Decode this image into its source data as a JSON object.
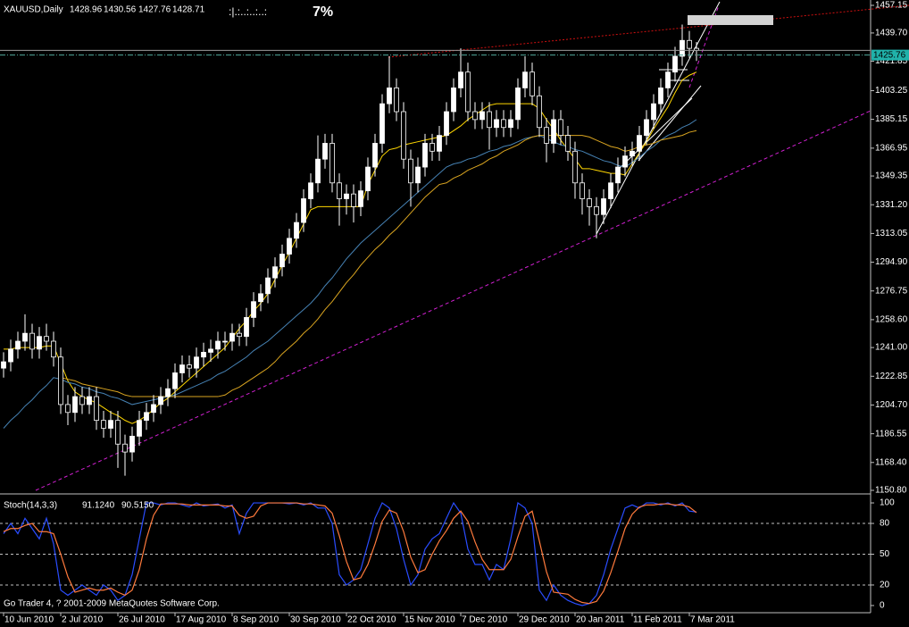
{
  "chart_data": [
    {
      "type": "candlestick",
      "title": "XAUUSD,Daily",
      "readout": [
        1428.96,
        1430.56,
        1427.76,
        1428.71
      ],
      "annotations": [
        ":|.:..:..:..:",
        "7%"
      ],
      "bid": 1425.76,
      "categories": [
        "10 Jun 2010",
        null,
        null,
        null,
        null,
        null,
        null,
        null,
        "2 Jul 2010",
        null,
        null,
        null,
        null,
        null,
        null,
        null,
        "26 Jul 2010",
        null,
        null,
        null,
        null,
        null,
        null,
        null,
        "17 Aug 2010",
        null,
        null,
        null,
        null,
        null,
        null,
        null,
        "8 Sep 2010",
        null,
        null,
        null,
        null,
        null,
        null,
        null,
        "30 Sep 2010",
        null,
        null,
        null,
        null,
        null,
        null,
        null,
        "22 Oct 2010",
        null,
        null,
        null,
        null,
        null,
        null,
        null,
        "15 Nov 2010",
        null,
        null,
        null,
        null,
        null,
        null,
        null,
        "7 Dec 2010",
        null,
        null,
        null,
        null,
        null,
        null,
        null,
        "29 Dec 2010",
        null,
        null,
        null,
        null,
        null,
        null,
        null,
        "20 Jan 2011",
        null,
        null,
        null,
        null,
        null,
        null,
        null,
        "11 Feb 2011",
        null,
        null,
        null,
        null,
        null,
        null,
        null,
        "7 Mar 2011",
        null
      ],
      "open": [
        1228,
        1232,
        1240,
        1245,
        1250,
        1240,
        1248,
        1245,
        1235,
        1205,
        1200,
        1210,
        1205,
        1210,
        1195,
        1190,
        1195,
        1180,
        1175,
        1185,
        1195,
        1200,
        1205,
        1210,
        1215,
        1225,
        1230,
        1228,
        1235,
        1238,
        1240,
        1245,
        1245,
        1250,
        1248,
        1260,
        1270,
        1275,
        1285,
        1292,
        1300,
        1310,
        1320,
        1335,
        1345,
        1360,
        1370,
        1345,
        1335,
        1338,
        1330,
        1340,
        1355,
        1370,
        1395,
        1405,
        1390,
        1360,
        1345,
        1355,
        1370,
        1365,
        1375,
        1390,
        1405,
        1415,
        1390,
        1385,
        1390,
        1380,
        1385,
        1380,
        1385,
        1405,
        1415,
        1400,
        1380,
        1370,
        1385,
        1375,
        1365,
        1345,
        1335,
        1330,
        1325,
        1335,
        1345,
        1355,
        1362,
        1365,
        1375,
        1385,
        1395,
        1405,
        1415,
        1425,
        1435,
        1430
      ],
      "high": [
        1238,
        1246,
        1251,
        1262,
        1256,
        1254,
        1256,
        1251,
        1241,
        1211,
        1216,
        1216,
        1216,
        1216,
        1201,
        1201,
        1201,
        1186,
        1191,
        1201,
        1206,
        1211,
        1216,
        1221,
        1231,
        1236,
        1236,
        1241,
        1244,
        1246,
        1251,
        1251,
        1256,
        1256,
        1266,
        1276,
        1281,
        1291,
        1298,
        1306,
        1316,
        1326,
        1341,
        1351,
        1375,
        1376,
        1376,
        1351,
        1344,
        1344,
        1346,
        1361,
        1376,
        1401,
        1425,
        1411,
        1396,
        1366,
        1361,
        1376,
        1376,
        1381,
        1396,
        1411,
        1430,
        1421,
        1396,
        1396,
        1396,
        1391,
        1391,
        1391,
        1411,
        1425,
        1421,
        1406,
        1386,
        1391,
        1391,
        1381,
        1371,
        1351,
        1341,
        1336,
        1341,
        1351,
        1361,
        1368,
        1371,
        1381,
        1391,
        1401,
        1411,
        1421,
        1431,
        1445,
        1441,
        1434
      ],
      "low": [
        1222,
        1226,
        1234,
        1239,
        1234,
        1234,
        1239,
        1229,
        1199,
        1192,
        1194,
        1199,
        1199,
        1189,
        1184,
        1184,
        1165,
        1160,
        1169,
        1179,
        1189,
        1194,
        1199,
        1204,
        1209,
        1219,
        1222,
        1222,
        1229,
        1232,
        1234,
        1239,
        1239,
        1242,
        1242,
        1254,
        1264,
        1269,
        1279,
        1286,
        1294,
        1304,
        1314,
        1329,
        1339,
        1354,
        1339,
        1318,
        1325,
        1320,
        1324,
        1334,
        1349,
        1364,
        1389,
        1384,
        1354,
        1330,
        1339,
        1349,
        1359,
        1359,
        1369,
        1384,
        1399,
        1384,
        1379,
        1379,
        1366,
        1374,
        1374,
        1374,
        1379,
        1399,
        1394,
        1374,
        1358,
        1364,
        1369,
        1359,
        1335,
        1325,
        1318,
        1310,
        1319,
        1329,
        1339,
        1349,
        1356,
        1359,
        1369,
        1379,
        1389,
        1399,
        1409,
        1419,
        1424,
        1422
      ],
      "close": [
        1232,
        1240,
        1245,
        1250,
        1240,
        1248,
        1245,
        1235,
        1205,
        1200,
        1210,
        1205,
        1210,
        1195,
        1190,
        1195,
        1180,
        1175,
        1185,
        1195,
        1200,
        1205,
        1210,
        1215,
        1225,
        1230,
        1228,
        1235,
        1238,
        1240,
        1245,
        1245,
        1250,
        1248,
        1260,
        1270,
        1275,
        1285,
        1292,
        1300,
        1310,
        1320,
        1335,
        1345,
        1360,
        1370,
        1345,
        1335,
        1338,
        1330,
        1340,
        1355,
        1370,
        1395,
        1405,
        1390,
        1360,
        1345,
        1355,
        1370,
        1365,
        1375,
        1390,
        1405,
        1415,
        1390,
        1385,
        1390,
        1380,
        1385,
        1380,
        1385,
        1405,
        1415,
        1400,
        1380,
        1370,
        1385,
        1375,
        1365,
        1345,
        1335,
        1330,
        1325,
        1335,
        1345,
        1355,
        1362,
        1365,
        1375,
        1385,
        1395,
        1405,
        1415,
        1425,
        1435,
        1430,
        1428.71
      ],
      "overlays": [
        {
          "color": "#ffd700",
          "values": [
            1240,
            1240,
            1241,
            1241,
            1241,
            1241,
            1242,
            1242,
            1231,
            1220,
            1213,
            1210,
            1208,
            1206,
            1203,
            1200,
            1198,
            1195,
            1193,
            1195,
            1198,
            1202,
            1206,
            1209,
            1213,
            1217,
            1221,
            1225,
            1229,
            1233,
            1237,
            1241,
            1247,
            1253,
            1258,
            1264,
            1269,
            1275,
            1284,
            1293,
            1301,
            1310,
            1319,
            1328,
            1330,
            1330,
            1330,
            1330,
            1330,
            1330,
            1330,
            1344,
            1353,
            1362,
            1366,
            1367,
            1369,
            1370,
            1371,
            1372,
            1373,
            1374,
            1375,
            1378,
            1381,
            1385,
            1388,
            1391,
            1394,
            1395,
            1395,
            1395,
            1395,
            1395,
            1395,
            1392,
            1385,
            1379,
            1372,
            1366,
            1360,
            1354,
            1354,
            1353,
            1352,
            1351,
            1351,
            1350,
            1357,
            1364,
            1371,
            1379,
            1386,
            1393,
            1402,
            1410,
            1413,
            1415
          ]
        },
        {
          "color": "#4682b4",
          "values": [
            1190,
            1195,
            1199,
            1204,
            1208,
            1213,
            1217,
            1222,
            1221,
            1219,
            1218,
            1216,
            1215,
            1213,
            1212,
            1210,
            1209,
            1207,
            1205,
            1206,
            1207,
            1208,
            1209,
            1210,
            1211,
            1213,
            1215,
            1217,
            1219,
            1221,
            1224,
            1226,
            1229,
            1232,
            1235,
            1239,
            1242,
            1245,
            1249,
            1253,
            1257,
            1261,
            1265,
            1269,
            1274,
            1280,
            1285,
            1291,
            1297,
            1302,
            1307,
            1311,
            1315,
            1319,
            1323,
            1327,
            1331,
            1335,
            1339,
            1343,
            1347,
            1351,
            1355,
            1357,
            1358,
            1360,
            1361,
            1363,
            1365,
            1366,
            1368,
            1369,
            1371,
            1373,
            1374,
            1375,
            1373,
            1371,
            1369,
            1368,
            1366,
            1365,
            1363,
            1361,
            1359,
            1358,
            1356,
            1355,
            1358,
            1361,
            1365,
            1368,
            1372,
            1375,
            1377,
            1380,
            1382,
            1385
          ]
        },
        {
          "color": "#daa520",
          "values": [
            null,
            null,
            null,
            null,
            null,
            null,
            null,
            null,
            1222,
            1221,
            1220,
            1218,
            1217,
            1216,
            1215,
            1214,
            1213,
            1211,
            1210,
            1210,
            1210,
            1210,
            1210,
            1210,
            1210,
            1210,
            1210,
            1210,
            1210,
            1210,
            1210,
            1211,
            1214,
            1216,
            1219,
            1222,
            1225,
            1228,
            1232,
            1237,
            1241,
            1245,
            1250,
            1254,
            1259,
            1265,
            1270,
            1276,
            1282,
            1287,
            1293,
            1298,
            1303,
            1307,
            1312,
            1316,
            1321,
            1326,
            1331,
            1336,
            1340,
            1344,
            1345,
            1348,
            1350,
            1353,
            1355,
            1357,
            1360,
            1362,
            1365,
            1367,
            1369,
            1372,
            1374,
            1375,
            1375,
            1375,
            1375,
            1375,
            1375,
            1375,
            1374,
            1372,
            1370,
            1368,
            1367,
            1365,
            1366,
            1368,
            1369,
            1370,
            1372,
            1373,
            1374,
            1375,
            1377,
            1378
          ]
        }
      ],
      "ylim": [
        1149.1,
        1459.4
      ],
      "yticks": [
        1457.15,
        {
          "value": 1439.7,
          "label": "1439.70"
        },
        1421.85,
        1403.25,
        1385.15,
        1366.95,
        1349.35,
        {
          "value": 1331.2,
          "label": "1331.20"
        },
        1313.05,
        {
          "value": 1294.9,
          "label": "1294.90"
        },
        1276.75,
        {
          "value": 1258.6,
          "label": "1258.60"
        },
        {
          "value": 1241,
          "label": "1241.00"
        },
        1222.85,
        {
          "value": 1204.7,
          "label": "1204.70"
        },
        1186.55,
        {
          "value": 1168.4,
          "label": "1168.40"
        },
        {
          "value": 1150.8,
          "label": "1150.80"
        }
      ]
    },
    {
      "type": "line",
      "title": "Stoch(14,3,3)",
      "readout": [
        "91.1240",
        "90.5150"
      ],
      "footer": "Go Trader 4, ? 2001-2009 MetaQuotes Software Corp.",
      "series": [
        {
          "color": "#2a4dff",
          "values": [
            70,
            80,
            70,
            85,
            75,
            65,
            85,
            60,
            15,
            10,
            15,
            20,
            15,
            10,
            20,
            15,
            5,
            10,
            30,
            65,
            100,
            100,
            98,
            100,
            100,
            98,
            96,
            100,
            97,
            98,
            99,
            95,
            98,
            70,
            90,
            100,
            100,
            100,
            100,
            100,
            99,
            100,
            98,
            100,
            95,
            95,
            80,
            30,
            20,
            25,
            35,
            60,
            85,
            100,
            95,
            75,
            45,
            20,
            30,
            55,
            65,
            70,
            85,
            100,
            90,
            55,
            40,
            40,
            25,
            40,
            35,
            65,
            100,
            95,
            80,
            15,
            5,
            20,
            10,
            5,
            2,
            0,
            2,
            10,
            30,
            55,
            75,
            95,
            98,
            95,
            100,
            100,
            98,
            100,
            97,
            100,
            92,
            91.124
          ]
        },
        {
          "color": "#ff7a3c",
          "values": [
            72,
            75,
            75,
            78,
            80,
            72,
            72,
            70,
            50,
            28,
            13,
            15,
            17,
            15,
            15,
            17,
            13,
            10,
            15,
            35,
            65,
            88,
            99,
            99,
            99,
            99,
            98,
            98,
            98,
            98,
            98,
            97,
            97,
            88,
            85,
            87,
            97,
            100,
            100,
            100,
            100,
            100,
            99,
            99,
            98,
            97,
            90,
            68,
            43,
            25,
            27,
            40,
            60,
            82,
            93,
            90,
            72,
            47,
            32,
            35,
            50,
            63,
            73,
            85,
            92,
            82,
            62,
            45,
            35,
            35,
            35,
            45,
            67,
            87,
            92,
            63,
            33,
            13,
            12,
            11,
            6,
            3,
            2,
            4,
            14,
            32,
            53,
            75,
            89,
            96,
            98,
            98,
            99,
            99,
            98,
            98,
            96,
            90.515
          ]
        }
      ],
      "ylim": [
        -7,
        107
      ],
      "yticks": [
        100,
        80,
        50,
        20,
        0
      ],
      "grid": true
    }
  ]
}
